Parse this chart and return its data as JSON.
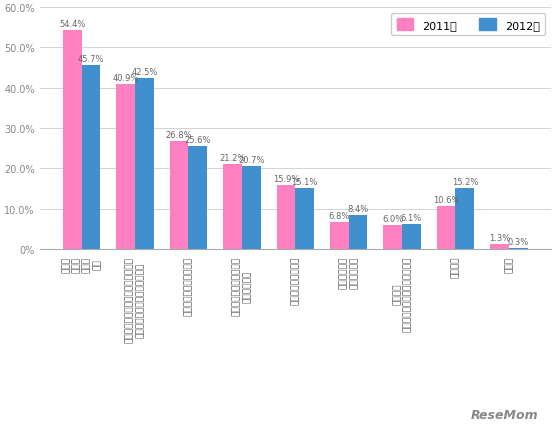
{
  "categories": [
    "日本人\n教師の\n指導レ\nベル",
    "英語を好きにさせてくれるかどうか\n（生徒に合わせた授業の工夫）",
    "指導内容・カリキュラム",
    "ＡＬＴ（外国人指導者）\nの指導レベル",
    "教員向けの研修制度",
    "（教材など）\nツールの整備",
    "評価制度\n（フィードバックの有無など）",
    "特にない",
    "その他"
  ],
  "values_2011": [
    54.4,
    40.9,
    26.8,
    21.2,
    15.9,
    6.8,
    6.0,
    10.6,
    1.3
  ],
  "values_2012": [
    45.7,
    42.5,
    25.6,
    20.7,
    15.1,
    8.4,
    6.1,
    15.2,
    0.3
  ],
  "color_2011": "#FF80C0",
  "color_2012": "#4090D0",
  "legend_2011": "2011年",
  "legend_2012": "2012年",
  "ylim": [
    0,
    60
  ],
  "yticks": [
    0,
    10,
    20,
    30,
    40,
    50,
    60
  ],
  "ytick_labels": [
    "0%",
    "10.0%",
    "20.0%",
    "30.0%",
    "40.0%",
    "50.0%",
    "60.0%"
  ],
  "bar_width": 0.35,
  "label_fontsize": 6.0,
  "tick_fontsize": 7,
  "cat_fontsize": 6.5,
  "background_color": "#ffffff",
  "watermark": "ReseMom"
}
